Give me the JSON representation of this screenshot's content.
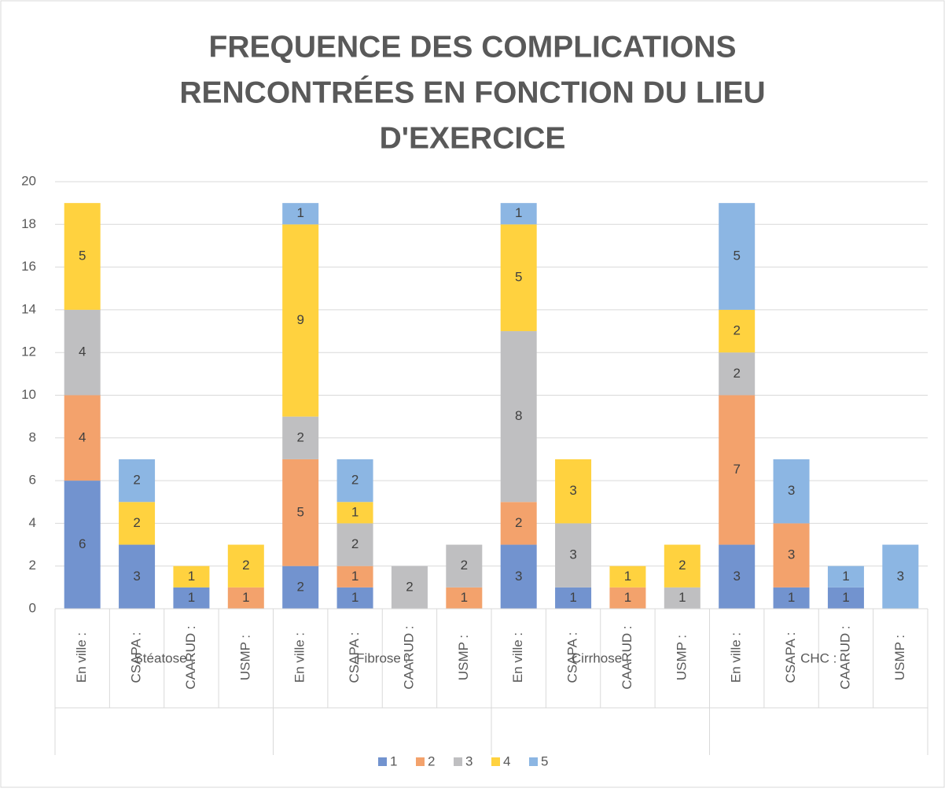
{
  "chart_data": {
    "type": "stacked_bar",
    "title": [
      "FREQUENCE DES COMPLICATIONS",
      "RENCONTRÉES EN FONCTION DU LIEU",
      "D'EXERCICE"
    ],
    "groups": [
      {
        "name": "Stéatose :",
        "categories": [
          "En ville :",
          "CSAPA :",
          "CAARUD :",
          "USMP :"
        ]
      },
      {
        "name": "Fibrose :",
        "categories": [
          "En ville :",
          "CSAPA :",
          "CAARUD :",
          "USMP :"
        ]
      },
      {
        "name": "Cirrhose :",
        "categories": [
          "En ville :",
          "CSAPA :",
          "CAARUD :",
          "USMP :"
        ]
      },
      {
        "name": "CHC :",
        "categories": [
          "En ville :",
          "CSAPA :",
          "CAARUD :",
          "USMP :"
        ]
      }
    ],
    "series": [
      {
        "name": "1",
        "color": "#7293cf",
        "values": [
          6,
          3,
          1,
          null,
          2,
          1,
          null,
          null,
          3,
          1,
          null,
          null,
          3,
          1,
          1,
          null
        ]
      },
      {
        "name": "2",
        "color": "#f3a26c",
        "values": [
          4,
          null,
          null,
          1,
          5,
          1,
          null,
          1,
          2,
          null,
          1,
          null,
          7,
          3,
          null,
          null
        ]
      },
      {
        "name": "3",
        "color": "#bfbfc1",
        "values": [
          4,
          null,
          null,
          null,
          2,
          2,
          2,
          2,
          8,
          3,
          null,
          1,
          2,
          null,
          null,
          null
        ]
      },
      {
        "name": "4",
        "color": "#ffd23f",
        "values": [
          5,
          2,
          1,
          2,
          9,
          1,
          null,
          null,
          5,
          3,
          1,
          2,
          2,
          null,
          null,
          null
        ]
      },
      {
        "name": "5",
        "color": "#8cb6e3",
        "values": [
          null,
          2,
          null,
          null,
          1,
          2,
          null,
          null,
          1,
          null,
          null,
          null,
          5,
          3,
          1,
          3
        ]
      }
    ],
    "ylim": [
      0,
      20
    ],
    "yticks": [
      0,
      2,
      4,
      6,
      8,
      10,
      12,
      14,
      16,
      18,
      20
    ],
    "grid": true,
    "legend": "bottom"
  }
}
